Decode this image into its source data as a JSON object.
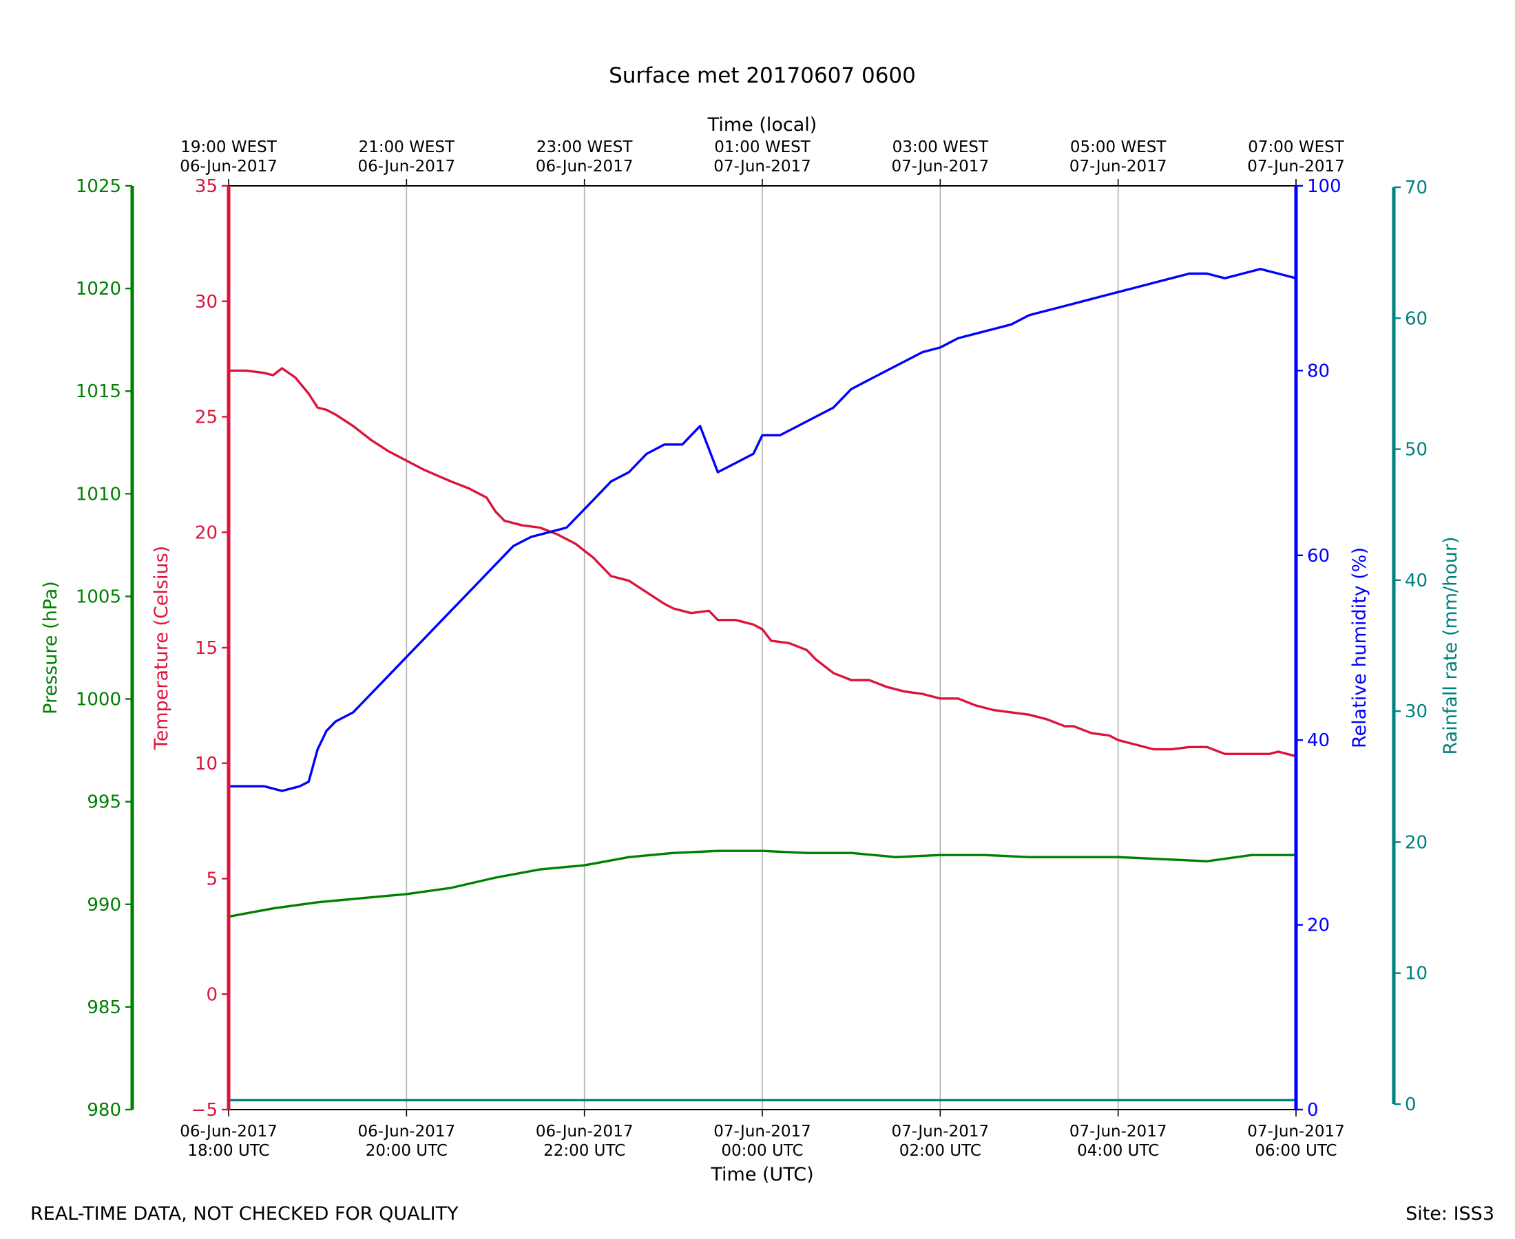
{
  "footer": {
    "left_note": "REAL-TIME DATA, NOT CHECKED FOR QUALITY",
    "site_label": "Site: ISS3"
  },
  "chart_data": {
    "type": "line",
    "title": "Surface met 20170607 0600",
    "xlabel": "Time (UTC)",
    "top_xlabel": "Time (local)",
    "x_hours_range": [
      0,
      12
    ],
    "grid": "vertical lines at bottom ticks",
    "x_ticks": [
      {
        "h": 0,
        "utc": [
          "06-Jun-2017",
          "18:00 UTC"
        ],
        "local": [
          "19:00 WEST",
          "06-Jun-2017"
        ]
      },
      {
        "h": 2,
        "utc": [
          "06-Jun-2017",
          "20:00 UTC"
        ],
        "local": [
          "21:00 WEST",
          "06-Jun-2017"
        ]
      },
      {
        "h": 4,
        "utc": [
          "06-Jun-2017",
          "22:00 UTC"
        ],
        "local": [
          "23:00 WEST",
          "06-Jun-2017"
        ]
      },
      {
        "h": 6,
        "utc": [
          "07-Jun-2017",
          "00:00 UTC"
        ],
        "local": [
          "01:00 WEST",
          "07-Jun-2017"
        ]
      },
      {
        "h": 8,
        "utc": [
          "07-Jun-2017",
          "02:00 UTC"
        ],
        "local": [
          "03:00 WEST",
          "07-Jun-2017"
        ]
      },
      {
        "h": 10,
        "utc": [
          "07-Jun-2017",
          "04:00 UTC"
        ],
        "local": [
          "05:00 WEST",
          "07-Jun-2017"
        ]
      },
      {
        "h": 12,
        "utc": [
          "07-Jun-2017",
          "06:00 UTC"
        ],
        "local": [
          "07:00 WEST",
          "07-Jun-2017"
        ]
      }
    ],
    "axes": {
      "pressure": {
        "label": "Pressure (hPa)",
        "range": [
          980,
          1025
        ],
        "ticks": [
          980,
          985,
          990,
          995,
          1000,
          1005,
          1010,
          1015,
          1020,
          1025
        ],
        "color": "#008000"
      },
      "temperature": {
        "label": "Temperature (Celsius)",
        "range": [
          -5,
          35
        ],
        "ticks": [
          -5,
          0,
          5,
          10,
          15,
          20,
          25,
          30,
          35
        ],
        "color": "#dc143c"
      },
      "humidity": {
        "label": "Relative humidity (%)",
        "range": [
          0,
          100
        ],
        "ticks": [
          0,
          20,
          40,
          60,
          80,
          100
        ],
        "color": "#0000ff"
      },
      "rainfall": {
        "label": "Rainfall rate (mm/hour)",
        "range": [
          0,
          70
        ],
        "ticks": [
          0,
          10,
          20,
          30,
          40,
          50,
          60,
          70
        ],
        "color": "#008080"
      }
    },
    "series": [
      {
        "name": "Temperature",
        "axis": "temperature",
        "color": "#dc143c",
        "x": [
          0,
          0.2,
          0.4,
          0.5,
          0.6,
          0.75,
          0.9,
          1.0,
          1.1,
          1.2,
          1.4,
          1.6,
          1.8,
          2.0,
          2.2,
          2.5,
          2.7,
          2.9,
          3.0,
          3.1,
          3.3,
          3.5,
          3.7,
          3.9,
          4.0,
          4.1,
          4.3,
          4.5,
          4.7,
          4.9,
          5.0,
          5.2,
          5.4,
          5.5,
          5.7,
          5.9,
          6.0,
          6.1,
          6.3,
          6.5,
          6.6,
          6.8,
          7.0,
          7.2,
          7.4,
          7.6,
          7.8,
          8.0,
          8.2,
          8.4,
          8.6,
          8.8,
          9.0,
          9.2,
          9.4,
          9.5,
          9.7,
          9.9,
          10.0,
          10.2,
          10.4,
          10.6,
          10.8,
          11.0,
          11.2,
          11.5,
          11.7,
          11.8,
          12.0
        ],
        "values": [
          27.0,
          27.0,
          26.9,
          26.8,
          27.1,
          26.7,
          26.0,
          25.4,
          25.3,
          25.1,
          24.6,
          24.0,
          23.5,
          23.1,
          22.7,
          22.2,
          21.9,
          21.5,
          20.9,
          20.5,
          20.3,
          20.2,
          19.9,
          19.5,
          19.2,
          18.9,
          18.1,
          17.9,
          17.4,
          16.9,
          16.7,
          16.5,
          16.6,
          16.2,
          16.2,
          16.0,
          15.8,
          15.3,
          15.2,
          14.9,
          14.5,
          13.9,
          13.6,
          13.6,
          13.3,
          13.1,
          13.0,
          12.8,
          12.8,
          12.5,
          12.3,
          12.2,
          12.1,
          11.9,
          11.6,
          11.6,
          11.3,
          11.2,
          11.0,
          10.8,
          10.6,
          10.6,
          10.7,
          10.7,
          10.4,
          10.4,
          10.4,
          10.5,
          10.3
        ]
      },
      {
        "name": "Relative humidity",
        "axis": "humidity",
        "color": "#0000ff",
        "x": [
          0,
          0.2,
          0.4,
          0.6,
          0.8,
          0.9,
          1.0,
          1.1,
          1.2,
          1.4,
          1.6,
          1.8,
          2.0,
          2.2,
          2.4,
          2.6,
          2.8,
          3.0,
          3.1,
          3.2,
          3.4,
          3.6,
          3.8,
          4.0,
          4.1,
          4.3,
          4.5,
          4.7,
          4.9,
          5.1,
          5.3,
          5.5,
          5.7,
          5.9,
          6.0,
          6.2,
          6.4,
          6.6,
          6.8,
          7.0,
          7.2,
          7.4,
          7.6,
          7.8,
          8.0,
          8.2,
          8.4,
          8.6,
          8.8,
          9.0,
          9.2,
          9.4,
          9.6,
          9.8,
          10.0,
          10.2,
          10.4,
          10.6,
          10.8,
          11.0,
          11.2,
          11.4,
          11.6,
          11.8,
          12.0
        ],
        "values": [
          35,
          35,
          35,
          34.5,
          35,
          35.5,
          39,
          41,
          42,
          43,
          45,
          47,
          49,
          51,
          53,
          55,
          57,
          59,
          60,
          61,
          62,
          62.5,
          63,
          65,
          66,
          68,
          69,
          71,
          72,
          72,
          74,
          69,
          70,
          71,
          73,
          73,
          74,
          75,
          76,
          78,
          79,
          80,
          81,
          82,
          82.5,
          83.5,
          84,
          84.5,
          85,
          86,
          86.5,
          87,
          87.5,
          88,
          88.5,
          89,
          89.5,
          90,
          90.5,
          90.5,
          90,
          90.5,
          91,
          90.5,
          90
        ]
      },
      {
        "name": "Pressure",
        "axis": "pressure",
        "color": "#008000",
        "x": [
          0,
          0.5,
          1.0,
          1.5,
          2.0,
          2.5,
          3.0,
          3.5,
          4.0,
          4.5,
          5.0,
          5.5,
          6.0,
          6.5,
          7.0,
          7.5,
          8.0,
          8.5,
          9.0,
          9.5,
          10.0,
          10.5,
          11.0,
          11.5,
          12.0
        ],
        "values": [
          989.4,
          989.8,
          990.1,
          990.3,
          990.5,
          990.8,
          991.3,
          991.7,
          991.9,
          992.3,
          992.5,
          992.6,
          992.6,
          992.5,
          992.5,
          992.3,
          992.4,
          992.4,
          992.3,
          992.3,
          992.3,
          992.2,
          992.1,
          992.4,
          992.4
        ]
      },
      {
        "name": "Rainfall rate",
        "axis": "rainfall",
        "color": "#008080",
        "x": [
          0,
          12
        ],
        "values": [
          0.3,
          0.3
        ]
      }
    ]
  }
}
